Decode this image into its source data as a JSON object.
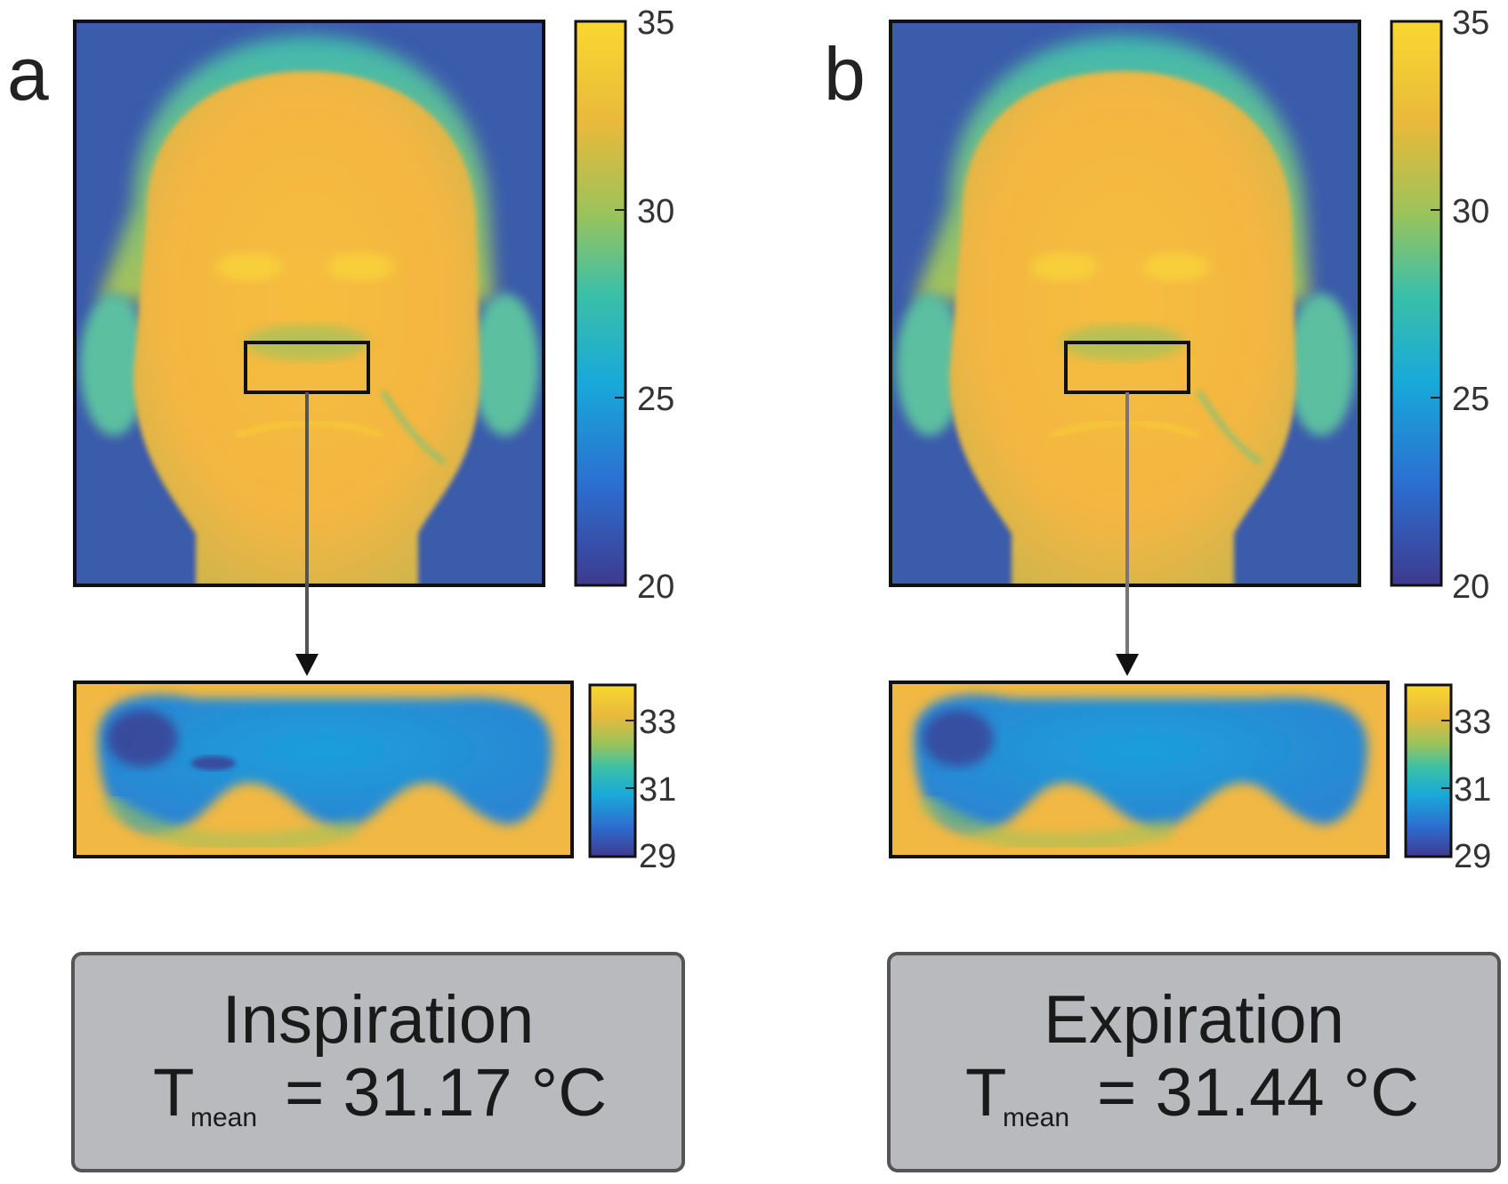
{
  "panels": [
    {
      "letter": "a",
      "colorbar_main": {
        "max_label": "35",
        "mid_label": "30",
        "low_label": "25",
        "min_label": "20"
      },
      "colorbar_zoom": {
        "top_label": "33",
        "mid_label": "31",
        "min_label": "29"
      },
      "result_box": {
        "title": "Inspiration",
        "formula_T": "T",
        "formula_sub": "mean",
        "formula_rest": "= 31.17 °C"
      }
    },
    {
      "letter": "b",
      "colorbar_main": {
        "max_label": "35",
        "mid_label": "30",
        "low_label": "25",
        "min_label": "20"
      },
      "colorbar_zoom": {
        "top_label": "33",
        "mid_label": "31",
        "min_label": "29"
      },
      "result_box": {
        "title": "Expiration",
        "formula_T": "T",
        "formula_sub": "mean",
        "formula_rest": "= 31.44 °C"
      }
    }
  ],
  "colors": {
    "background_cool": "#3b5bab",
    "face_warm": "#f4b942",
    "colormap": [
      "#3e3a8f",
      "#2c6fd1",
      "#18a9d9",
      "#3cc0a6",
      "#9cc35a",
      "#e9b93b",
      "#f8d830"
    ],
    "result_box_fill": "#b9babd",
    "frame": "#111111"
  },
  "icons": [
    "down-arrow-icon"
  ]
}
